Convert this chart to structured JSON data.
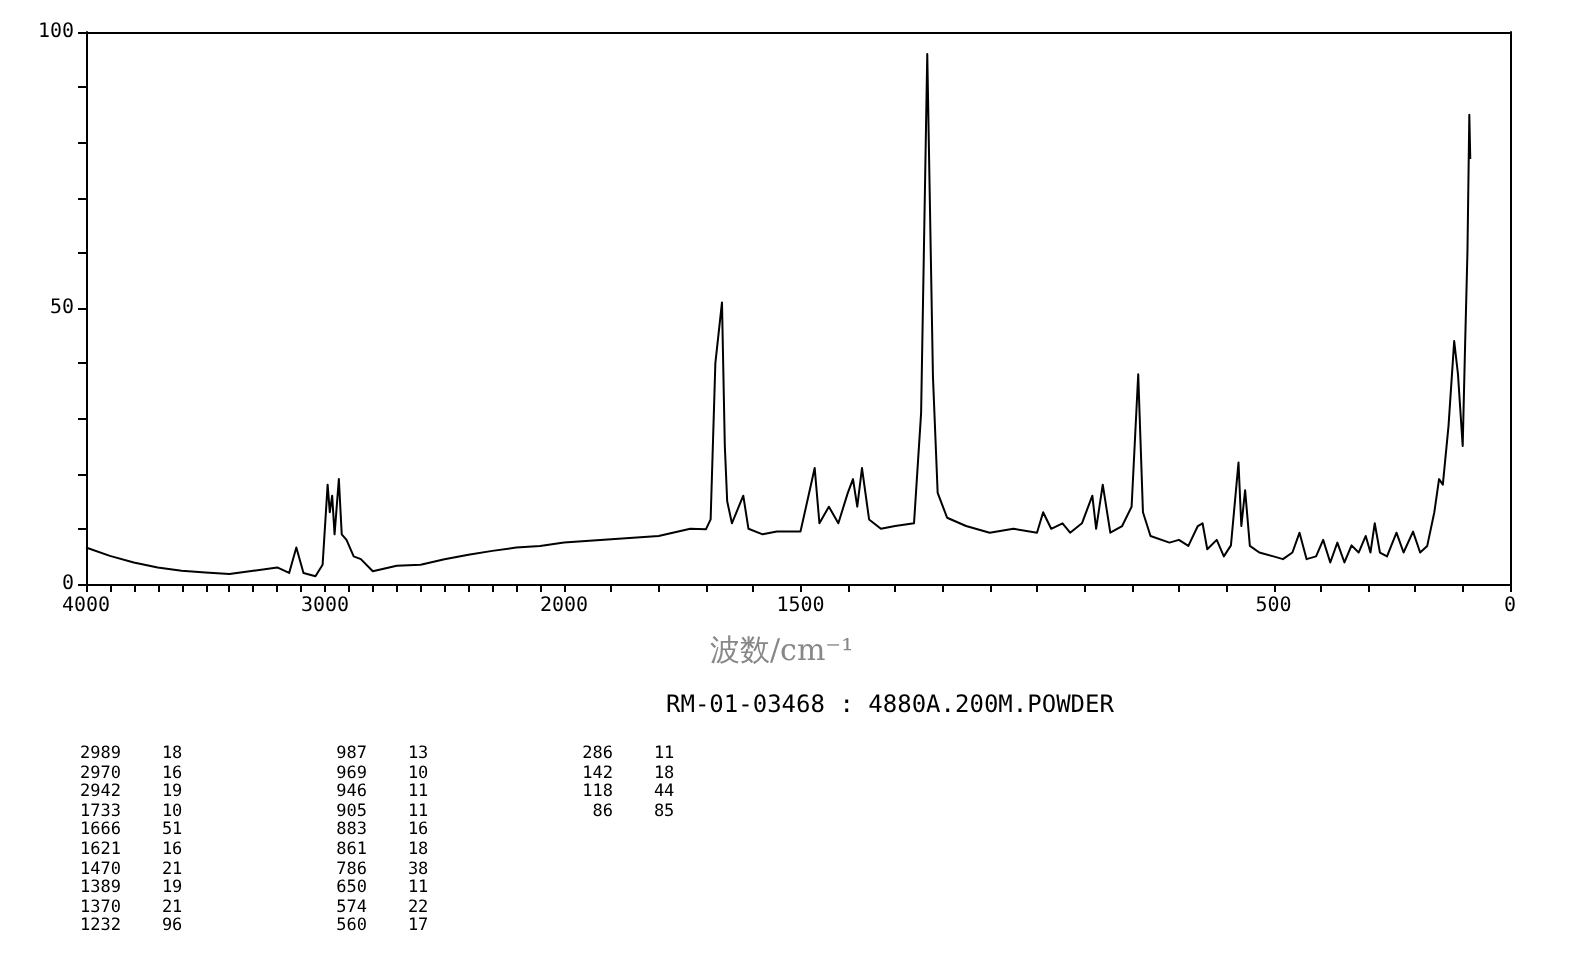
{
  "chart_data": [
    {
      "type": "line",
      "x": [
        4000,
        3900,
        3800,
        3700,
        3600,
        3500,
        3400,
        3300,
        3200,
        3150,
        3120,
        3090,
        3040,
        3010,
        2989,
        2980,
        2970,
        2960,
        2942,
        2930,
        2910,
        2880,
        2850,
        2800,
        2700,
        2600,
        2500,
        2400,
        2300,
        2200,
        2100,
        2000
      ],
      "series": [
        {
          "color": "#000000",
          "values": [
            6.6,
            5.1,
            3.9,
            3.0,
            2.4,
            2.1,
            1.8,
            2.4,
            3.0,
            2.0,
            6.6,
            2.0,
            1.4,
            3.5,
            18,
            13,
            16,
            9,
            19,
            9,
            8,
            5,
            4.5,
            2.3,
            3.3,
            3.5,
            4.5,
            5.3,
            6.0,
            6.6,
            6.9,
            7.5
          ]
        }
      ],
      "xlim": [
        4000,
        2000
      ],
      "ylim": [
        0,
        100
      ],
      "xticks": [
        4000,
        {
          "value": 3900,
          "label": null
        },
        {
          "value": 3800,
          "label": null
        },
        {
          "value": 3700,
          "label": null
        },
        {
          "value": 3600,
          "label": null
        },
        {
          "value": 3500,
          "label": null
        },
        {
          "value": 3400,
          "label": null
        },
        {
          "value": 3300,
          "label": null
        },
        {
          "value": 3200,
          "label": null
        },
        {
          "value": 3100,
          "label": null
        },
        3000,
        {
          "value": 2900,
          "label": null
        },
        {
          "value": 2800,
          "label": null
        },
        {
          "value": 2700,
          "label": null
        },
        {
          "value": 2600,
          "label": null
        },
        {
          "value": 2500,
          "label": null
        },
        {
          "value": 2400,
          "label": null
        },
        {
          "value": 2300,
          "label": null
        },
        {
          "value": 2200,
          "label": null
        },
        {
          "value": 2100,
          "label": null
        },
        2000
      ],
      "yticks": [
        0,
        {
          "value": 10,
          "label": null
        },
        {
          "value": 20,
          "label": null
        },
        {
          "value": 30,
          "label": null
        },
        {
          "value": 40,
          "label": null
        },
        50,
        {
          "value": 60,
          "label": null
        },
        {
          "value": 70,
          "label": null
        },
        {
          "value": 80,
          "label": null
        },
        {
          "value": 90,
          "label": null
        },
        100
      ],
      "marker": "none",
      "line_style": "solid",
      "grid": false
    },
    {
      "type": "line",
      "x": [
        2000,
        1900,
        1800,
        1733,
        1700,
        1690,
        1680,
        1666,
        1660,
        1655,
        1645,
        1621,
        1610,
        1580,
        1550,
        1500,
        1470,
        1460,
        1440,
        1420,
        1400,
        1389,
        1380,
        1370,
        1355,
        1330,
        1300,
        1260,
        1245,
        1232,
        1220,
        1210,
        1190,
        1150,
        1100,
        1050,
        1000,
        987,
        970,
        946,
        930,
        905,
        883,
        875,
        861,
        845,
        820,
        800,
        786,
        776,
        760,
        720,
        700,
        680,
        660,
        650,
        640,
        620,
        605,
        590,
        574,
        568,
        560,
        550,
        530,
        500,
        480,
        460,
        445,
        430,
        410,
        395,
        380,
        365,
        350,
        335,
        320,
        305,
        295,
        286,
        275,
        260,
        240,
        225,
        205,
        190,
        175,
        160,
        150,
        142,
        130,
        118,
        110,
        100,
        95,
        90,
        86,
        84
      ],
      "series": [
        {
          "color": "#000000",
          "values": [
            7.5,
            8.1,
            8.7,
            10,
            9.9,
            11.7,
            40,
            51,
            25,
            15,
            11,
            16,
            10,
            9,
            9.5,
            9.5,
            21,
            11,
            14,
            11,
            16.5,
            19,
            14,
            21,
            11.7,
            10,
            10.5,
            11,
            31,
            96,
            37.6,
            16.5,
            12,
            10.5,
            9.3,
            10,
            9.3,
            13,
            10,
            11,
            9.3,
            11,
            16,
            10,
            18,
            9.3,
            10.5,
            14,
            38,
            13,
            8.7,
            7.5,
            8,
            6.9,
            10.5,
            11,
            6.3,
            8,
            5,
            7,
            22,
            10.5,
            17,
            6.9,
            5.7,
            5,
            4.5,
            5.7,
            9.3,
            4.5,
            5,
            8,
            3.9,
            7.5,
            3.9,
            7,
            5.7,
            8.7,
            5.7,
            11,
            5.7,
            5,
            9.3,
            5.7,
            9.5,
            5.7,
            6.9,
            13,
            19,
            18,
            28.6,
            44,
            38,
            25,
            43,
            60,
            85,
            77
          ]
        }
      ],
      "xlim": [
        2000,
        0
      ],
      "ylim": [
        0,
        100
      ],
      "xticks": [
        {
          "value": 1900,
          "label": null
        },
        {
          "value": 1800,
          "label": null
        },
        {
          "value": 1700,
          "label": null
        },
        {
          "value": 1600,
          "label": null
        },
        1500,
        {
          "value": 1400,
          "label": null
        },
        {
          "value": 1300,
          "label": null
        },
        {
          "value": 1200,
          "label": null
        },
        {
          "value": 1100,
          "label": null
        },
        {
          "value": 1000,
          "label": null
        },
        {
          "value": 900,
          "label": null
        },
        {
          "value": 800,
          "label": null
        },
        {
          "value": 700,
          "label": null
        },
        {
          "value": 600,
          "label": null
        },
        500,
        {
          "value": 400,
          "label": null
        },
        {
          "value": 300,
          "label": null
        },
        {
          "value": 200,
          "label": null
        },
        {
          "value": 100,
          "label": null
        },
        0
      ],
      "tick_labels": "x",
      "marker": "none",
      "line_style": "solid",
      "grid": false,
      "xlabel": "波数/cm⁻¹",
      "annotations": [
        "RM-01-03468 : 4880A.200M.POWDER",
        "2989    18",
        "2970    16",
        "2942    19",
        "1733    10",
        "1666    51",
        "1621    16",
        "1470    21",
        "1389    19",
        "1370    21",
        "1232    96",
        " 987    13",
        " 969    10",
        " 946    11",
        " 905    11",
        " 883    16",
        " 861    18",
        " 786    38",
        " 650    11",
        " 574    22",
        " 560    17",
        " 286    11",
        " 142    18",
        " 118    44",
        "  86    85"
      ]
    }
  ]
}
